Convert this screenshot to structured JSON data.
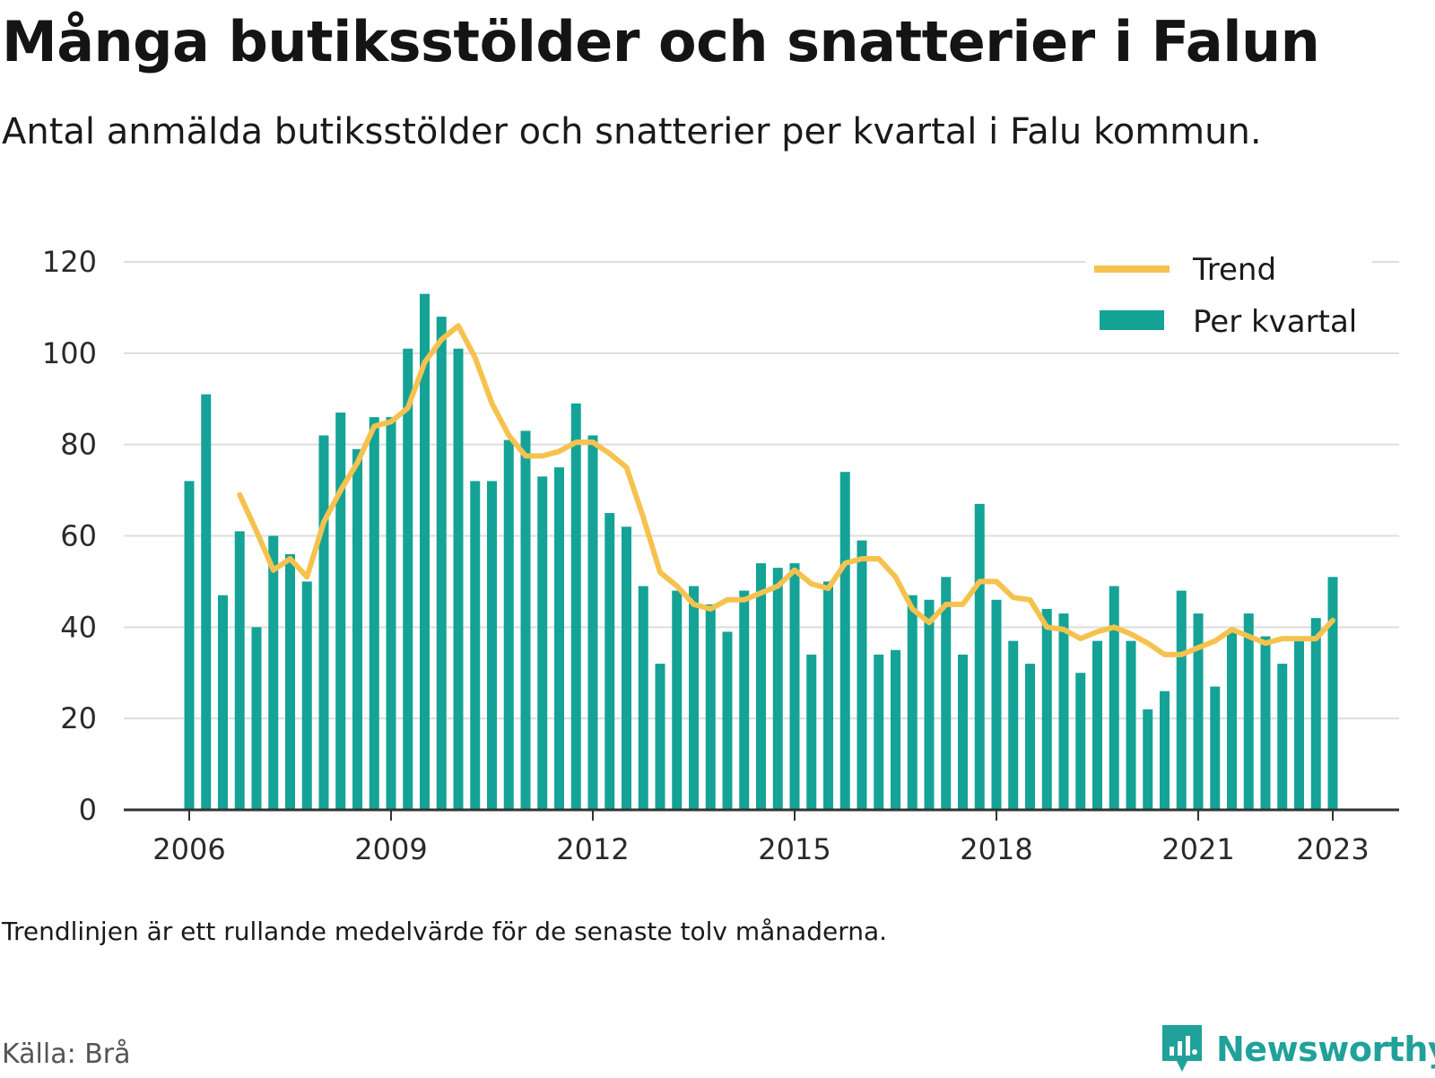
{
  "title": "Många butiksstölder och snatterier i Falun",
  "subtitle": "Antal anmälda butiksstölder och snatterier per kvartal i Falu kommun.",
  "note": "Trendlinjen är ett rullande medelvärde för de senaste tolv månaderna.",
  "source": "Källa: Brå",
  "brand": "Newsworthy",
  "colors": {
    "bar": "#14a396",
    "trend": "#f6c24f",
    "grid": "#dddddd",
    "axis": "#333333",
    "brand": "#20a19a"
  },
  "chart_data": {
    "type": "bar",
    "ylim": [
      0,
      120
    ],
    "yticks": [
      0,
      20,
      40,
      60,
      80,
      100,
      120
    ],
    "xticks": [
      "2006",
      "2009",
      "2012",
      "2015",
      "2018",
      "2021",
      "2023"
    ],
    "xtick_positions": [
      0,
      12,
      24,
      36,
      48,
      60,
      68
    ],
    "legend_position": "top-right",
    "grid": true,
    "series": [
      {
        "name": "Per kvartal",
        "type": "bar",
        "values": [
          72,
          91,
          47,
          61,
          40,
          60,
          56,
          50,
          82,
          87,
          79,
          86,
          86,
          101,
          113,
          108,
          101,
          72,
          72,
          81,
          83,
          73,
          75,
          89,
          82,
          65,
          62,
          49,
          32,
          48,
          49,
          45,
          39,
          48,
          54,
          53,
          54,
          34,
          50,
          74,
          59,
          34,
          35,
          47,
          46,
          51,
          34,
          67,
          46,
          37,
          32,
          44,
          43,
          30,
          37,
          49,
          37,
          22,
          26,
          48,
          43,
          27,
          39,
          43,
          38,
          32,
          38,
          42,
          51
        ]
      },
      {
        "name": "Trend",
        "type": "line",
        "start_index": 3,
        "values": [
          69,
          61,
          52.5,
          55,
          51,
          63,
          70,
          76,
          84,
          85,
          88,
          98,
          103,
          106,
          99,
          89,
          82,
          77.5,
          77.5,
          78.5,
          80.5,
          80.5,
          78,
          75,
          64,
          52,
          49,
          45,
          44,
          46,
          46,
          47.5,
          49,
          52.5,
          49.5,
          48.5,
          54,
          55,
          55,
          51,
          44,
          41,
          45,
          45,
          50,
          50,
          46.5,
          46,
          40,
          39.5,
          37.5,
          39,
          40,
          38.5,
          36.5,
          34,
          34,
          35.5,
          37,
          39.5,
          38,
          36.5,
          37.5,
          37.5,
          37.5,
          41.5
        ]
      }
    ]
  }
}
